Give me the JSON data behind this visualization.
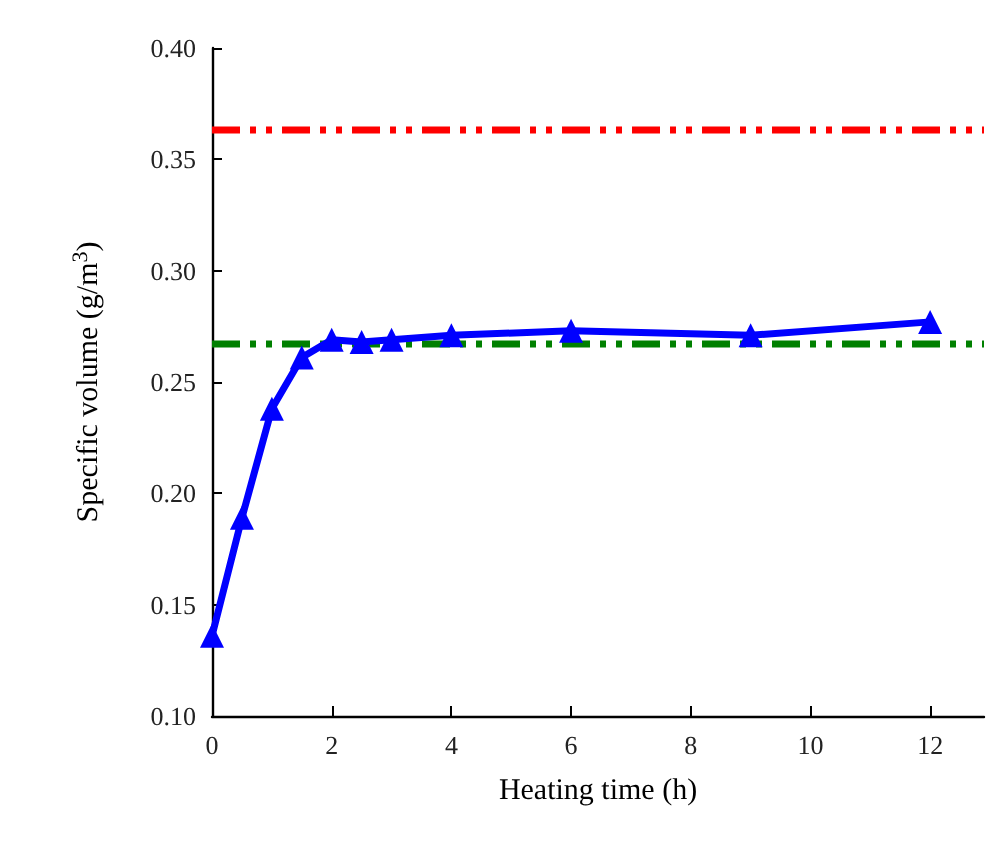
{
  "chart_data": {
    "type": "line",
    "xlabel": "Heating time (h)",
    "ylabel": "Specific volume (g/m$^{3}$)",
    "x": [
      0,
      0.5,
      1,
      1.5,
      2,
      2.5,
      3,
      4,
      6,
      9,
      12
    ],
    "series": [
      {
        "color": "#0000ff",
        "values": [
          0.136,
          0.189,
          0.238,
          0.261,
          0.269,
          0.268,
          0.269,
          0.271,
          0.273,
          0.271,
          0.277
        ]
      }
    ],
    "xlim": [
      0,
      12.9
    ],
    "xticks": [
      0,
      2,
      4,
      6,
      8,
      10,
      12
    ],
    "ylim": [
      0.1,
      0.4
    ],
    "yticks": [
      {
        "value": 0.1,
        "label": "0.10"
      },
      0.15,
      {
        "value": 0.2,
        "label": "0.20"
      },
      0.25,
      {
        "value": 0.3,
        "label": "0.30"
      },
      0.35,
      {
        "value": 0.4,
        "label": "0.40"
      }
    ],
    "ref_lines": [
      {
        "axis": "y",
        "value": 0.363,
        "color": "#ff0000",
        "line_style": "dashed"
      },
      {
        "axis": "y",
        "value": 0.267,
        "color": "#008000",
        "line_style": "dashed"
      }
    ],
    "marker": "triangle",
    "line_style": "solid"
  }
}
